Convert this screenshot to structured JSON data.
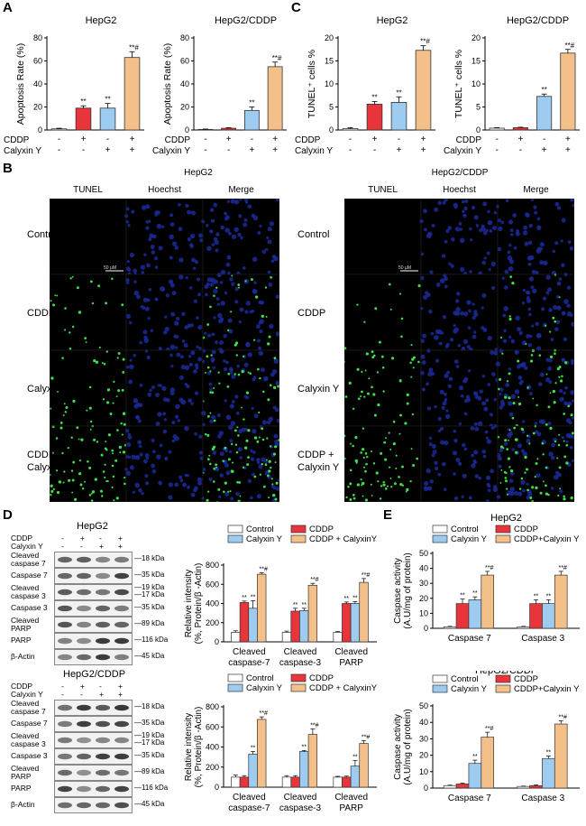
{
  "panels": {
    "A": "A",
    "B": "B",
    "C": "C",
    "D": "D",
    "E": "E"
  },
  "treatment_rows": [
    "CDDP",
    "Calyxin Y"
  ],
  "treatment_signs": [
    [
      "-",
      "+",
      "-",
      "+"
    ],
    [
      "-",
      "-",
      "+",
      "+"
    ]
  ],
  "colors": {
    "control": "#ffffff",
    "cddp": "#e8343b",
    "calyxin": "#9ecbf0",
    "combo": "#f4c08a"
  },
  "chart_data": [
    {
      "id": "A-HepG2",
      "type": "bar",
      "title": "HepG2",
      "ylabel": "Apoptosis Rate (%)",
      "ylim": [
        0,
        80
      ],
      "yticks": [
        0,
        20,
        40,
        60,
        80
      ],
      "values": [
        1,
        19,
        19,
        63
      ],
      "errors": [
        0.5,
        2,
        4,
        5
      ],
      "sig": [
        "",
        "**",
        "**",
        "**#"
      ]
    },
    {
      "id": "A-HepG2CDDP",
      "type": "bar",
      "title": "HepG2/CDDP",
      "ylabel": "Apoptosis Rate (%)",
      "ylim": [
        0,
        80
      ],
      "yticks": [
        0,
        20,
        40,
        60,
        80
      ],
      "values": [
        0.5,
        1.5,
        17,
        55
      ],
      "errors": [
        0.3,
        0.5,
        3,
        4
      ],
      "sig": [
        "",
        "",
        "**",
        "**#"
      ]
    },
    {
      "id": "C-HepG2",
      "type": "bar",
      "title": "HepG2",
      "ylabel": "TUNEL⁺ cells %",
      "ylim": [
        0,
        20
      ],
      "yticks": [
        0,
        5,
        10,
        15,
        20
      ],
      "values": [
        0.3,
        5.6,
        6,
        17.3
      ],
      "errors": [
        0.2,
        0.6,
        1.2,
        1
      ],
      "sig": [
        "",
        "**",
        "**",
        "**#"
      ]
    },
    {
      "id": "C-HepG2CDDP",
      "type": "bar",
      "title": "HepG2/CDDP",
      "ylabel": "TUNEL⁺ cells %",
      "ylim": [
        0,
        20
      ],
      "yticks": [
        0,
        5,
        10,
        15,
        20
      ],
      "values": [
        0.4,
        0.5,
        7.3,
        16.7
      ],
      "errors": [
        0.1,
        0.1,
        0.5,
        0.8
      ],
      "sig": [
        "",
        "",
        "**",
        "**#"
      ]
    },
    {
      "id": "D-HepG2",
      "type": "bar",
      "title": "",
      "ylabel": "Relative intensity",
      "ylabel2": "(%, Protein/β -Actin)",
      "ylim": [
        0,
        800
      ],
      "yticks": [
        0,
        200,
        400,
        600,
        800
      ],
      "categories": [
        "Cleaved caspase-7",
        "Cleaved caspase-3",
        "Cleaved PARP"
      ],
      "series": [
        {
          "name": "Control",
          "values": [
            100,
            100,
            100
          ],
          "errors": [
            15,
            12,
            8
          ]
        },
        {
          "name": "CDDP",
          "values": [
            410,
            320,
            400
          ],
          "errors": [
            15,
            30,
            15
          ]
        },
        {
          "name": "Calyxin Y",
          "values": [
            350,
            325,
            400
          ],
          "errors": [
            80,
            25,
            20
          ]
        },
        {
          "name": "CDDP + CalyxinY",
          "values": [
            705,
            590,
            620
          ],
          "errors": [
            15,
            20,
            40
          ]
        }
      ],
      "sig": [
        [
          "",
          "**",
          "**",
          "**#"
        ],
        [
          "",
          "**",
          "**",
          "**#"
        ],
        [
          "",
          "**",
          "**",
          "**#"
        ]
      ]
    },
    {
      "id": "D-HepG2CDDP",
      "type": "bar",
      "title": "",
      "ylabel": "Relative intensity",
      "ylabel2": "(%, Protein/β -Actin)",
      "ylim": [
        0,
        800
      ],
      "yticks": [
        0,
        200,
        400,
        600,
        800
      ],
      "categories": [
        "Cleaved caspase-7",
        "Cleaved caspase-3",
        "Cleaved PARP"
      ],
      "series": [
        {
          "name": "Control",
          "values": [
            100,
            100,
            100
          ],
          "errors": [
            20,
            15,
            8
          ]
        },
        {
          "name": "CDDP",
          "values": [
            100,
            100,
            100
          ],
          "errors": [
            15,
            15,
            10
          ]
        },
        {
          "name": "Calyxin Y",
          "values": [
            330,
            355,
            210
          ],
          "errors": [
            25,
            10,
            55
          ]
        },
        {
          "name": "CDDP + CalyxinY",
          "values": [
            675,
            525,
            435
          ],
          "errors": [
            25,
            55,
            30
          ]
        }
      ],
      "sig": [
        [
          "",
          "",
          "**",
          "**#"
        ],
        [
          "",
          "",
          "**",
          "**#"
        ],
        [
          "",
          "",
          "**",
          "**#"
        ]
      ]
    },
    {
      "id": "E-HepG2",
      "type": "bar",
      "title": "HepG2",
      "ylabel": "Caspase activity",
      "ylabel2": "(A.U/mg of protein)",
      "ylim": [
        0,
        50
      ],
      "yticks": [
        0,
        10,
        20,
        30,
        40,
        50
      ],
      "categories": [
        "Caspase 7",
        "Caspase 3"
      ],
      "series": [
        {
          "name": "Control",
          "values": [
            1,
            1
          ],
          "errors": [
            0.3,
            0.3
          ]
        },
        {
          "name": "CDDP",
          "values": [
            16.5,
            16.5
          ],
          "errors": [
            3,
            2.5
          ]
        },
        {
          "name": "Calyxin Y",
          "values": [
            19,
            16.5
          ],
          "errors": [
            2,
            2.5
          ]
        },
        {
          "name": "CDDP+Calyxin Y",
          "values": [
            35.5,
            35.5
          ],
          "errors": [
            2.5,
            2.5
          ]
        }
      ],
      "sig": [
        [
          "",
          "**",
          "**",
          "**#"
        ],
        [
          "",
          "**",
          "**",
          "**#"
        ]
      ]
    },
    {
      "id": "E-HepG2CDDP",
      "type": "bar",
      "title": "HepG2/CDDP",
      "ylabel": "Caspase activity",
      "ylabel2": "(A.U/mg of protein)",
      "ylim": [
        0,
        50
      ],
      "yticks": [
        0,
        10,
        20,
        30,
        40,
        50
      ],
      "categories": [
        "Caspase 7",
        "Caspase 3"
      ],
      "series": [
        {
          "name": "Control",
          "values": [
            1.5,
            1
          ],
          "errors": [
            0.3,
            0.2
          ]
        },
        {
          "name": "CDDP",
          "values": [
            2.5,
            1.5
          ],
          "errors": [
            0.5,
            0.4
          ]
        },
        {
          "name": "Calyxin Y",
          "values": [
            15,
            18
          ],
          "errors": [
            2,
            1.5
          ]
        },
        {
          "name": "CDDP+Calyxin Y",
          "values": [
            31,
            39
          ],
          "errors": [
            3,
            2
          ]
        }
      ],
      "sig": [
        [
          "",
          "",
          "**",
          "**#"
        ],
        [
          "",
          "",
          "**",
          "**#"
        ]
      ]
    }
  ],
  "fluorescence": {
    "group1": {
      "title": "HepG2",
      "heads": [
        "TUNEL",
        "Hoechst",
        "Merge"
      ]
    },
    "group2": {
      "title": "HepG2/CDDP",
      "heads": [
        "TUNEL",
        "Hoechst",
        "Merge"
      ]
    },
    "rows": [
      "Control",
      "CDDP",
      "Calyxin Y",
      "CDDP +\nCalyxin Y"
    ],
    "scalebar": "50 μM"
  },
  "blots": {
    "HepG2": {
      "title": "HepG2",
      "treat": [
        {
          "label": "CDDP",
          "signs": [
            "-",
            "+",
            "-",
            "+"
          ]
        },
        {
          "label": "Calyxin Y",
          "signs": [
            "-",
            "-",
            "+",
            "+"
          ]
        }
      ],
      "rows": [
        {
          "label": "Cleaved\ncaspase 7",
          "kda": "18 kDa"
        },
        {
          "label": "Caspase 7",
          "kda": "35 kDa"
        },
        {
          "label": "Cleaved\ncaspase 3",
          "kda": "19 kDa\n17 kDa"
        },
        {
          "label": "Caspase 3",
          "kda": "35 kDa"
        },
        {
          "label": "Cleaved\nPARP",
          "kda": "89 kDa"
        },
        {
          "label": "PARP",
          "kda": "116 kDa"
        },
        {
          "label": "β-Actin",
          "kda": "45 kDa"
        }
      ]
    },
    "HepG2CDDP": {
      "title": "HepG2/CDDP",
      "treat": [
        {
          "label": "CDDP",
          "signs": [
            "-",
            "+",
            "-",
            "+"
          ]
        },
        {
          "label": "Calyxin Y",
          "signs": [
            "-",
            "-",
            "+",
            "+"
          ]
        }
      ],
      "rows": [
        {
          "label": "Cleaved\ncaspase 7",
          "kda": "18 kDa"
        },
        {
          "label": "Caspase 7",
          "kda": "35 kDa"
        },
        {
          "label": "Cleaved\ncaspase 3",
          "kda": "19 kDa\n17 kDa"
        },
        {
          "label": "Caspase 3",
          "kda": "35 kDa"
        },
        {
          "label": "Cleaved\nPARP",
          "kda": "89 kDa"
        },
        {
          "label": "PARP",
          "kda": "116 kDa"
        },
        {
          "label": "β-Actin",
          "kda": "45 kDa"
        }
      ]
    }
  }
}
